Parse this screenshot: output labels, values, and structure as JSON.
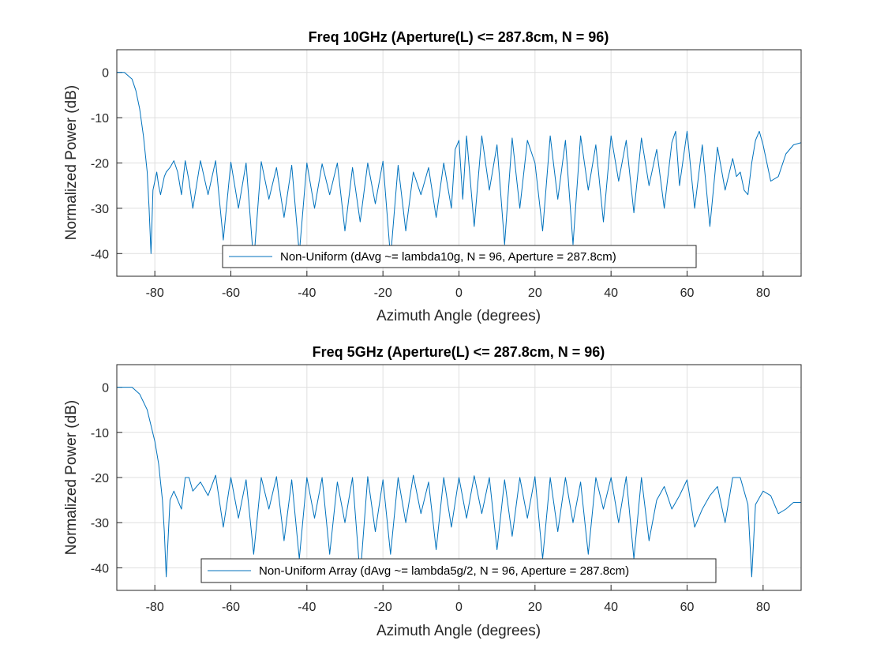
{
  "chart_data": [
    {
      "type": "line",
      "title": "Freq 10GHz (Aperture(L) <= 287.8cm, N = 96)",
      "xlabel": "Azimuth Angle (degrees)",
      "ylabel": "Normalized Power (dB)",
      "xlim": [
        -90,
        90
      ],
      "ylim": [
        -45,
        5
      ],
      "xticks": [
        -80,
        -60,
        -40,
        -20,
        0,
        20,
        40,
        60,
        80
      ],
      "yticks": [
        0,
        -10,
        -20,
        -30,
        -40
      ],
      "grid": true,
      "legend_position": "bottom-center",
      "color": "#0072BD",
      "series": [
        {
          "name": "Non-Uniform (dAvg ~= lambda10g, N = 96, Aperture = 287.8cm)",
          "x": [
            -90,
            -88,
            -86,
            -85,
            -84,
            -83,
            -82,
            -81.5,
            -81,
            -80.5,
            -79.5,
            -79,
            -78.5,
            -77.5,
            -77,
            -76,
            -75,
            -74,
            -73,
            -72,
            -71,
            -70,
            -68,
            -66,
            -64,
            -62,
            -60,
            -58,
            -56,
            -54,
            -52,
            -50,
            -48,
            -46,
            -44,
            -42,
            -40,
            -38,
            -36,
            -34,
            -32,
            -30,
            -28,
            -26,
            -24,
            -22,
            -20,
            -18,
            -16,
            -14,
            -12,
            -10,
            -8,
            -6,
            -4,
            -2,
            -1,
            0,
            1,
            2,
            4,
            6,
            8,
            10,
            12,
            14,
            16,
            18,
            20,
            22,
            24,
            26,
            28,
            30,
            32,
            34,
            36,
            38,
            40,
            42,
            44,
            46,
            48,
            50,
            52,
            54,
            56,
            57,
            58,
            60,
            62,
            64,
            66,
            68,
            70,
            72,
            73,
            74,
            75,
            76,
            77,
            78,
            79,
            80,
            82,
            84,
            86,
            88,
            90
          ],
          "y": [
            0,
            0,
            -1.5,
            -4,
            -8,
            -14,
            -22,
            -30,
            -40,
            -26,
            -22,
            -25,
            -27,
            -23,
            -22,
            -21,
            -19.5,
            -22,
            -27,
            -19.5,
            -24,
            -30,
            -19.5,
            -27,
            -19.5,
            -37,
            -19.8,
            -30,
            -20,
            -42,
            -19.7,
            -28,
            -21,
            -32,
            -20.5,
            -40,
            -20,
            -30,
            -20.2,
            -27,
            -20,
            -35,
            -21,
            -33,
            -20,
            -29,
            -19.6,
            -41,
            -20.5,
            -35,
            -22,
            -27,
            -21,
            -32,
            -20,
            -30,
            -17,
            -15,
            -28,
            -14,
            -34,
            -14,
            -26,
            -16,
            -38,
            -14.5,
            -30,
            -15,
            -20,
            -35,
            -14,
            -28,
            -15,
            -38,
            -14,
            -26,
            -16,
            -33,
            -14,
            -24,
            -15,
            -31,
            -14.5,
            -25,
            -17,
            -30,
            -15.5,
            -13,
            -25,
            -13,
            -30,
            -16,
            -34,
            -16.5,
            -26,
            -19,
            -23,
            -22,
            -26,
            -27,
            -20,
            -15,
            -13,
            -16,
            -24,
            -23,
            -18,
            -16,
            -15.5
          ]
        }
      ]
    },
    {
      "type": "line",
      "title": "Freq 5GHz (Aperture(L) <= 287.8cm, N = 96)",
      "xlabel": "Azimuth Angle (degrees)",
      "ylabel": "Normalized Power (dB)",
      "xlim": [
        -90,
        90
      ],
      "ylim": [
        -45,
        5
      ],
      "xticks": [
        -80,
        -60,
        -40,
        -20,
        0,
        20,
        40,
        60,
        80
      ],
      "yticks": [
        0,
        -10,
        -20,
        -30,
        -40
      ],
      "grid": true,
      "legend_position": "bottom-center",
      "color": "#0072BD",
      "series": [
        {
          "name": "Non-Uniform Array (dAvg ~= lambda5g/2, N = 96, Aperture = 287.8cm)",
          "x": [
            -90,
            -86,
            -84,
            -82,
            -80,
            -79,
            -78,
            -77.5,
            -77,
            -76,
            -75,
            -74,
            -73,
            -72,
            -71,
            -70,
            -68,
            -66,
            -64,
            -62,
            -60,
            -58,
            -56,
            -54,
            -52,
            -50,
            -48,
            -46,
            -44,
            -42,
            -40,
            -38,
            -36,
            -34,
            -32,
            -30,
            -28,
            -26,
            -24,
            -22,
            -20,
            -18,
            -16,
            -14,
            -12,
            -10,
            -8,
            -6,
            -4,
            -2,
            0,
            2,
            4,
            6,
            8,
            10,
            12,
            14,
            16,
            18,
            20,
            22,
            24,
            26,
            28,
            30,
            32,
            34,
            36,
            38,
            40,
            42,
            44,
            46,
            48,
            50,
            52,
            54,
            56,
            58,
            60,
            62,
            64,
            66,
            68,
            70,
            72,
            74,
            76,
            77,
            78,
            80,
            82,
            84,
            86,
            88,
            90
          ],
          "y": [
            0,
            0,
            -1.5,
            -5,
            -12,
            -17,
            -25,
            -32,
            -42,
            -25,
            -23,
            -25,
            -27,
            -20,
            -20,
            -23,
            -21,
            -24,
            -19.5,
            -31,
            -20,
            -29,
            -20.5,
            -37,
            -20,
            -27,
            -19.8,
            -34,
            -20.5,
            -38,
            -20,
            -29,
            -20,
            -37,
            -21,
            -30,
            -20,
            -42,
            -19.8,
            -32,
            -20.5,
            -37,
            -20,
            -30,
            -19.5,
            -28,
            -21,
            -36,
            -20,
            -31,
            -20,
            -29,
            -19.6,
            -28,
            -20,
            -36,
            -20.5,
            -33,
            -20,
            -29,
            -19.8,
            -38,
            -20,
            -32,
            -20,
            -30,
            -21,
            -37,
            -20,
            -27,
            -20,
            -30,
            -19.8,
            -38,
            -20,
            -34,
            -25,
            -22,
            -27,
            -24,
            -20.5,
            -31,
            -27,
            -24,
            -22,
            -30,
            -20,
            -20,
            -26,
            -42,
            -26,
            -23,
            -24,
            -28,
            -27,
            -25.5,
            -25.5
          ]
        }
      ]
    }
  ]
}
